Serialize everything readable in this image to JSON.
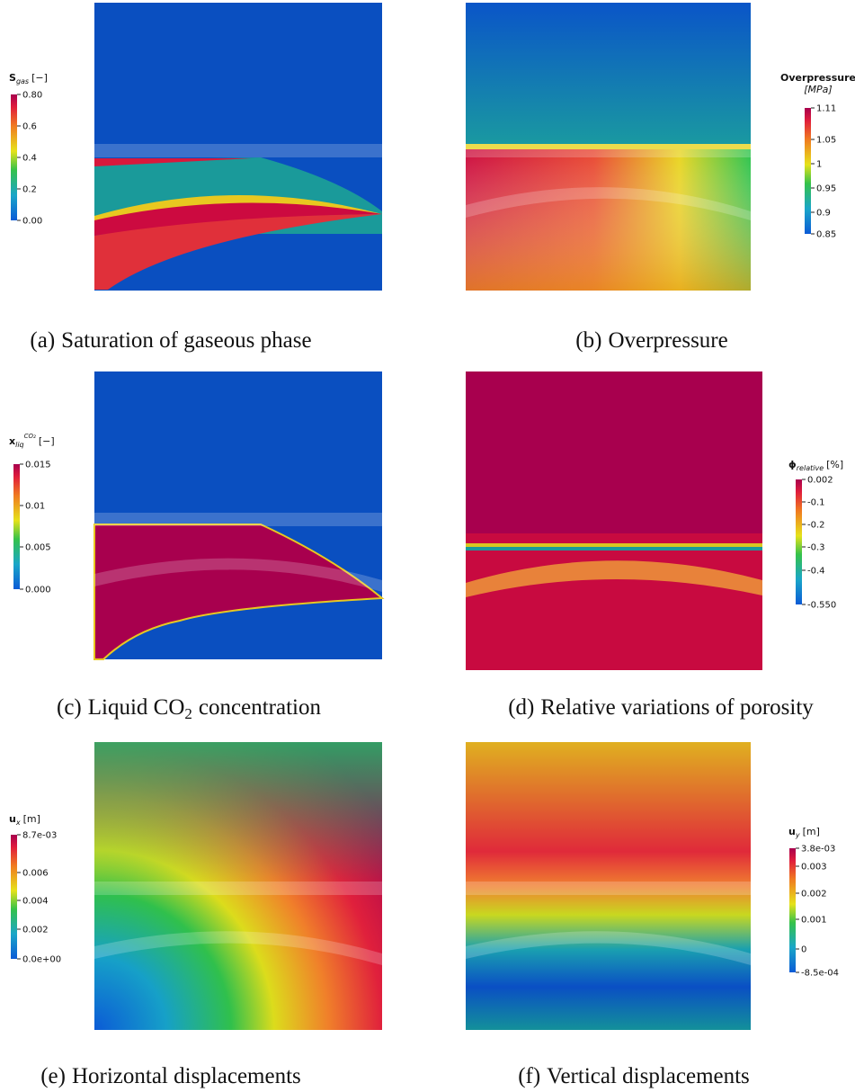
{
  "panels": [
    {
      "colorbar": {
        "symbol": "S",
        "sub": "gas",
        "unit": "[−]",
        "ticks": [
          "0.80",
          "0.6",
          "0.4",
          "0.2",
          "0.00"
        ]
      },
      "caption": {
        "label": "(a)",
        "text": "Saturation of gaseous phase"
      }
    },
    {
      "colorbar": {
        "symbol": "Overpressure",
        "unit": "[MPa]",
        "ticks": [
          "1.11",
          "1.05",
          "1",
          "0.95",
          "0.9",
          "0.85"
        ]
      },
      "caption": {
        "label": "(b)",
        "text": "Overpressure"
      }
    },
    {
      "colorbar": {
        "symbol": "x",
        "sub": "liq",
        "sup": "CO₂",
        "unit": "[−]",
        "ticks": [
          "0.015",
          "0.01",
          "0.005",
          "0.000"
        ]
      },
      "caption": {
        "label": "(c)",
        "text": "Liquid CO",
        "sub": "2",
        "rest": "concentration"
      }
    },
    {
      "colorbar": {
        "symbol": "ϕ",
        "sub": "relative",
        "unit": "[%]",
        "ticks": [
          "0.002",
          "-0.1",
          "-0.2",
          "-0.3",
          "-0.4",
          "-0.550"
        ]
      },
      "caption": {
        "label": "(d)",
        "text": "Relative variations of porosity"
      }
    },
    {
      "colorbar": {
        "symbol": "u",
        "sub": "x",
        "unit": "[m]",
        "ticks": [
          "8.7e-03",
          "0.006",
          "0.004",
          "0.002",
          "0.0e+00"
        ]
      },
      "caption": {
        "label": "(e)",
        "text": "Horizontal displacements"
      }
    },
    {
      "colorbar": {
        "symbol": "u",
        "sub": "y",
        "unit": "[m]",
        "ticks": [
          "3.8e-03",
          "0.003",
          "0.002",
          "0.001",
          "0",
          "-8.5e-04"
        ]
      },
      "caption": {
        "label": "(f)",
        "text": "Vertical displacements"
      }
    }
  ]
}
